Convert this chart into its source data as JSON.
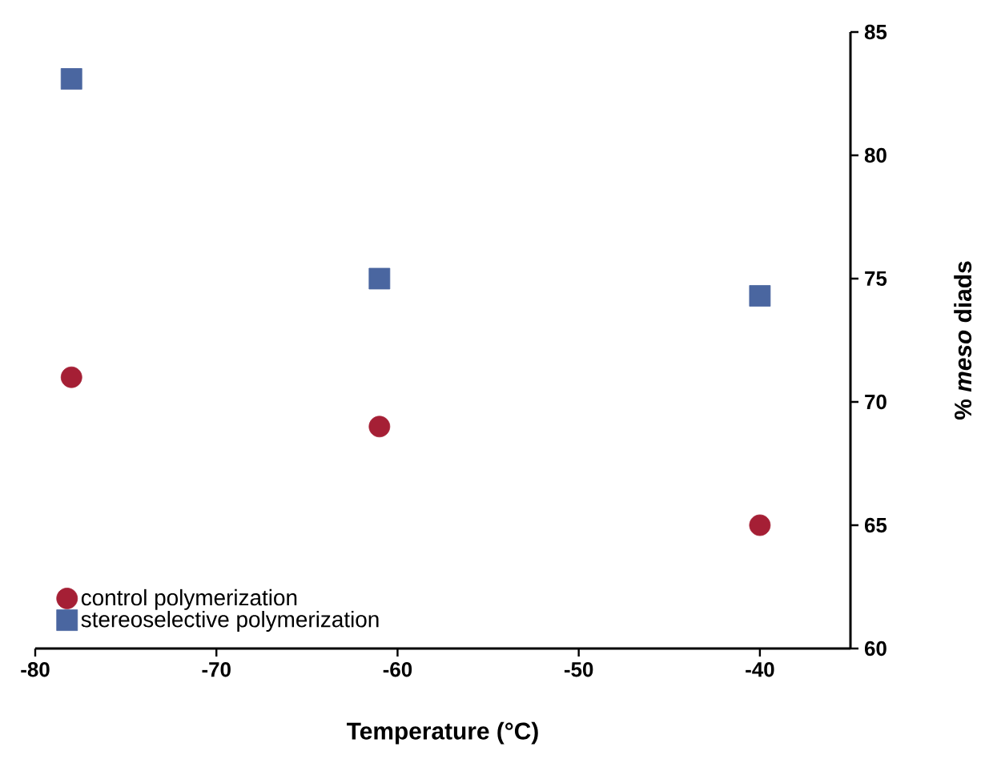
{
  "chart_data": {
    "type": "scatter",
    "xlabel": "Temperature (°C)",
    "ylabel": "% *meso* diads",
    "xlim": [
      -80,
      -35
    ],
    "xticks": [
      -80,
      -70,
      -60,
      -50,
      -40
    ],
    "ylim": [
      60,
      85
    ],
    "yticks": [
      60,
      65,
      70,
      75,
      80,
      85
    ],
    "grid": false,
    "legend": "bottom left",
    "series": [
      {
        "name": "control polymerization",
        "color": "#a51f35",
        "marker": "circle",
        "x": [
          -78,
          -61,
          -40
        ],
        "values": [
          71.0,
          69.0,
          65.0
        ]
      },
      {
        "name": "stereoselective polymerization",
        "color": "#4a66a0",
        "marker": "square",
        "x": [
          -78,
          -61,
          -40
        ],
        "values": [
          83.1,
          75.0,
          74.3
        ]
      }
    ]
  }
}
